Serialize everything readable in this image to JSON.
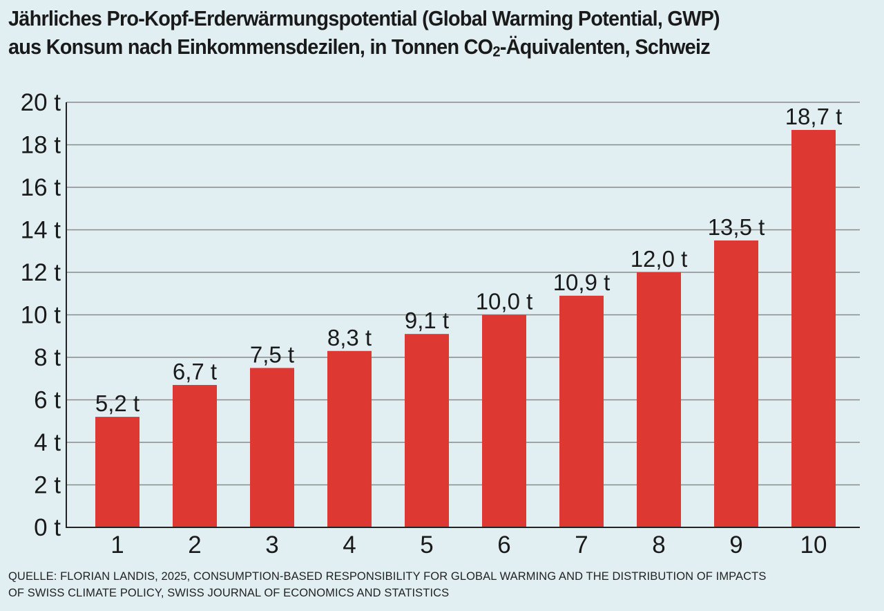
{
  "title_line1": "Jährliches Pro-Kopf-Erderwärmungspotential (Global Warming Potential, GWP)",
  "title_line2_pre": "aus Konsum nach Einkommensdezilen, in Tonnen CO",
  "title_line2_sub": "2",
  "title_line2_post": "-Äquivalenten, Schweiz",
  "source_line1": "QUELLE: FLORIAN LANDIS, 2025, CONSUMPTION-BASED RESPONSIBILITY FOR GLOBAL WARMING AND THE DISTRIBUTION OF IMPACTS",
  "source_line2": "OF SWISS CLIMATE POLICY, SWISS JOURNAL OF ECONOMICS AND STATISTICS",
  "colors": {
    "bar": "#dd3832",
    "background": "#e1eff3",
    "grid": "#8a8a8a"
  },
  "chart_data": {
    "type": "bar",
    "title": "Jährliches Pro-Kopf-Erderwärmungspotential (Global Warming Potential, GWP) aus Konsum nach Einkommensdezilen, in Tonnen CO2-Äquivalenten, Schweiz",
    "xlabel": "",
    "ylabel": "",
    "categories": [
      "1",
      "2",
      "3",
      "4",
      "5",
      "6",
      "7",
      "8",
      "9",
      "10"
    ],
    "values": [
      5.2,
      6.7,
      7.5,
      8.3,
      9.1,
      10.0,
      10.9,
      12.0,
      13.5,
      18.7
    ],
    "data_labels": [
      "5,2 t",
      "6,7 t",
      "7,5 t",
      "8,3 t",
      "9,1 t",
      "10,0 t",
      "10,9 t",
      "12,0 t",
      "13,5 t",
      "18,7 t"
    ],
    "ylim": [
      0,
      20
    ],
    "yticks": [
      0,
      2,
      4,
      6,
      8,
      10,
      12,
      14,
      16,
      18,
      20
    ],
    "ytick_labels": [
      "0 t",
      "2 t",
      "4 t",
      "6 t",
      "8 t",
      "10 t",
      "12 t",
      "14 t",
      "16 t",
      "18 t",
      "20 t"
    ],
    "grid": true,
    "legend": "none"
  }
}
